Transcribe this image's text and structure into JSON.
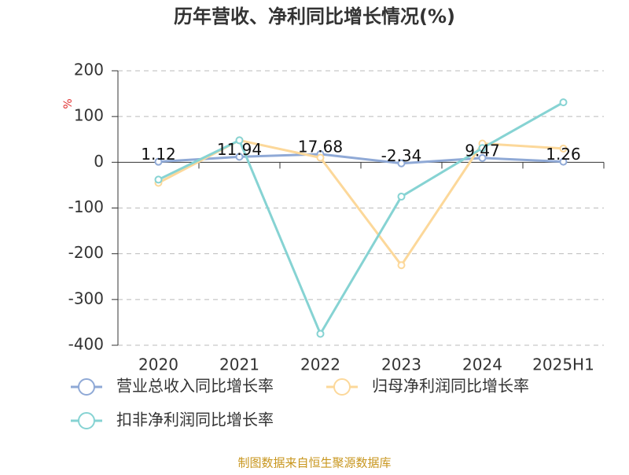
{
  "chart_data": {
    "type": "line",
    "title": "历年营收、净利同比增长情况(%)",
    "y_label": "%",
    "source": "制图数据来自恒生聚源数据库",
    "categories": [
      "2020",
      "2021",
      "2022",
      "2023",
      "2024",
      "2025H1"
    ],
    "series": [
      {
        "name": "营业总收入同比增长率",
        "color": "#8fa9d6",
        "values": [
          1.12,
          11.94,
          17.68,
          -2.34,
          9.47,
          1.26
        ],
        "labels": true
      },
      {
        "name": "归母净利润同比增长率",
        "color": "#fcd89a",
        "values": [
          -45,
          48,
          10,
          -225,
          41,
          30
        ]
      },
      {
        "name": "扣非净利润同比增长率",
        "color": "#86d3d3",
        "values": [
          -38,
          48,
          -375,
          -75,
          31,
          131
        ]
      }
    ],
    "ylim": [
      -400,
      200
    ],
    "yticks": [
      -400,
      -300,
      -200,
      -100,
      0,
      100,
      200
    ],
    "grid": true
  }
}
